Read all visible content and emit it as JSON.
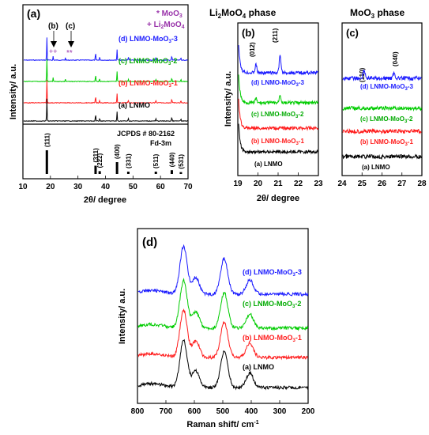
{
  "chart_data": [
    {
      "panel": "(a)",
      "type": "line",
      "xlabel": "2θ/ degree",
      "ylabel": "Intensity/ a.u.",
      "xlim": [
        10,
        70
      ],
      "xticks": [
        10,
        20,
        30,
        40,
        50,
        60,
        70
      ],
      "legend_note": [
        "* MoO3",
        "+ Li2MoO4"
      ],
      "arrows": [
        "(b)",
        "(c)"
      ],
      "series": [
        {
          "name": "(d) LNMO-MoO3-3",
          "color": "#1a1aff",
          "peaks": [
            [
              18.7,
              1.0
            ],
            [
              36.4,
              0.35
            ],
            [
              37.9,
              0.15
            ],
            [
              44.2,
              0.45
            ],
            [
              48.3,
              0.15
            ],
            [
              58.3,
              0.12
            ],
            [
              64.1,
              0.2
            ],
            [
              67.4,
              0.12
            ]
          ]
        },
        {
          "name": "(c) LNMO-MoO3-2",
          "color": "#00cc00",
          "peaks": [
            [
              18.7,
              1.0
            ],
            [
              36.4,
              0.32
            ],
            [
              37.9,
              0.12
            ],
            [
              44.2,
              0.42
            ],
            [
              48.3,
              0.12
            ],
            [
              58.3,
              0.1
            ],
            [
              64.1,
              0.18
            ],
            [
              67.4,
              0.1
            ]
          ]
        },
        {
          "name": "(b) LNMO-MoO3-1",
          "color": "#ff1a1a",
          "peaks": [
            [
              18.7,
              1.0
            ],
            [
              36.4,
              0.32
            ],
            [
              37.9,
              0.12
            ],
            [
              44.2,
              0.4
            ],
            [
              48.3,
              0.12
            ],
            [
              58.3,
              0.1
            ],
            [
              64.1,
              0.18
            ],
            [
              67.4,
              0.1
            ]
          ]
        },
        {
          "name": "(a) LNMO",
          "color": "#000000",
          "peaks": [
            [
              18.7,
              1.0
            ],
            [
              36.4,
              0.32
            ],
            [
              37.9,
              0.12
            ],
            [
              44.2,
              0.4
            ],
            [
              48.3,
              0.12
            ],
            [
              58.3,
              0.1
            ],
            [
              64.1,
              0.18
            ],
            [
              67.4,
              0.1
            ]
          ]
        }
      ],
      "reference": {
        "label": "JCPDS # 80-2162",
        "space_group": "Fd-3m",
        "sticks": [
          {
            "x": 18.7,
            "h": 1.0,
            "label": "(111)"
          },
          {
            "x": 36.4,
            "h": 0.35,
            "label": "(311)"
          },
          {
            "x": 37.9,
            "h": 0.12,
            "label": "(222)"
          },
          {
            "x": 44.2,
            "h": 0.5,
            "label": "(400)"
          },
          {
            "x": 48.3,
            "h": 0.1,
            "label": "(331)"
          },
          {
            "x": 58.3,
            "h": 0.1,
            "label": "(511)"
          },
          {
            "x": 64.1,
            "h": 0.16,
            "label": "(440)"
          },
          {
            "x": 67.4,
            "h": 0.08,
            "label": "(531)"
          }
        ]
      }
    },
    {
      "panel": "(b)",
      "type": "line",
      "title": "Li2MoO4 phase",
      "xlabel": "2θ/ degree",
      "ylabel": "Intensity/ a.u.",
      "xlim": [
        19,
        23
      ],
      "xticks": [
        19,
        20,
        21,
        22,
        23
      ],
      "annotations": [
        "(012)",
        "(211)"
      ],
      "series": [
        {
          "name": "(d) LNMO-MoO3-3",
          "color": "#1a1aff",
          "peaks": [
            [
              19.9,
              0.35
            ],
            [
              21.1,
              0.75
            ]
          ]
        },
        {
          "name": "(c) LNMO-MoO3-2",
          "color": "#00cc00",
          "peaks": [
            [
              19.9,
              0.18
            ],
            [
              21.1,
              0.35
            ]
          ]
        },
        {
          "name": "(b) LNMO-MoO3-1",
          "color": "#ff1a1a",
          "peaks": []
        },
        {
          "name": "(a) LNMO",
          "color": "#000000",
          "peaks": []
        }
      ]
    },
    {
      "panel": "(c)",
      "type": "line",
      "title": "MoO3 phase",
      "xlim": [
        24,
        28
      ],
      "xticks": [
        24,
        25,
        26,
        27,
        28
      ],
      "annotations": [
        "(110)",
        "(040)"
      ],
      "series": [
        {
          "name": "(d) LNMO-MoO3-3",
          "color": "#1a1aff",
          "peaks": [
            [
              25.1,
              0.4
            ],
            [
              26.6,
              0.25
            ]
          ]
        },
        {
          "name": "(c) LNMO-MoO3-2",
          "color": "#00cc00",
          "peaks": []
        },
        {
          "name": "(b) LNMO-MoO3-1",
          "color": "#ff1a1a",
          "peaks": []
        },
        {
          "name": "(a) LNMO",
          "color": "#000000",
          "peaks": []
        }
      ]
    },
    {
      "panel": "(d)",
      "type": "line",
      "xlabel": "Raman shift/ cm-1",
      "ylabel": "Intensity/ a.u.",
      "xlim": [
        800,
        200
      ],
      "xticks": [
        800,
        700,
        600,
        500,
        400,
        300,
        200
      ],
      "series": [
        {
          "name": "(d) LNMO-MoO3-3",
          "color": "#1a1aff"
        },
        {
          "name": "(c) LNMO-MoO3-2",
          "color": "#00cc00"
        },
        {
          "name": "(b) LNMO-MoO3-1",
          "color": "#ff1a1a"
        },
        {
          "name": "(a) LNMO",
          "color": "#000000"
        }
      ],
      "raman_bands": [
        [
          638,
          1.0
        ],
        [
          595,
          0.35
        ],
        [
          495,
          0.75
        ],
        [
          405,
          0.3
        ]
      ]
    }
  ]
}
